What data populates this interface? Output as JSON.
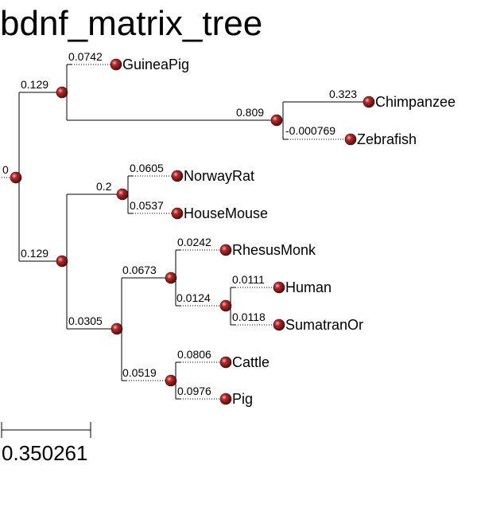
{
  "title": "bdnf_matrix_tree",
  "colors": {
    "node": "#9b1b1b",
    "node_highlight": "#f2b6b6",
    "line": "#000000"
  },
  "tree": {
    "nodes": [
      {
        "id": "root",
        "branch_length": "0"
      },
      {
        "id": "n1",
        "branch_length": "0.129"
      },
      {
        "id": "guineapig",
        "branch_length": "0.0742",
        "label": "GuineaPig"
      },
      {
        "id": "n_cz",
        "branch_length": "0.809"
      },
      {
        "id": "chimp",
        "branch_length": "0.323",
        "label": "Chimpanzee"
      },
      {
        "id": "zebra",
        "branch_length": "-0.000769",
        "label": "Zebrafish"
      },
      {
        "id": "n2",
        "branch_length": "0.129"
      },
      {
        "id": "n_rod",
        "branch_length": "0.2"
      },
      {
        "id": "rat",
        "branch_length": "0.0605",
        "label": "NorwayRat"
      },
      {
        "id": "mouse",
        "branch_length": "0.0537",
        "label": "HouseMouse"
      },
      {
        "id": "n3",
        "branch_length": "0.0305"
      },
      {
        "id": "n_pri",
        "branch_length": "0.0673"
      },
      {
        "id": "rhesus",
        "branch_length": "0.0242",
        "label": "RhesusMonk"
      },
      {
        "id": "n_hs",
        "branch_length": "0.0124"
      },
      {
        "id": "human",
        "branch_length": "0.0111",
        "label": "Human"
      },
      {
        "id": "orang",
        "branch_length": "0.0118",
        "label": "SumatranOr"
      },
      {
        "id": "n_cp",
        "branch_length": "0.0519"
      },
      {
        "id": "cattle",
        "branch_length": "0.0806",
        "label": "Cattle"
      },
      {
        "id": "pig",
        "branch_length": "0.0976",
        "label": "Pig"
      }
    ]
  },
  "scale_bar": {
    "value": "0.350261"
  }
}
